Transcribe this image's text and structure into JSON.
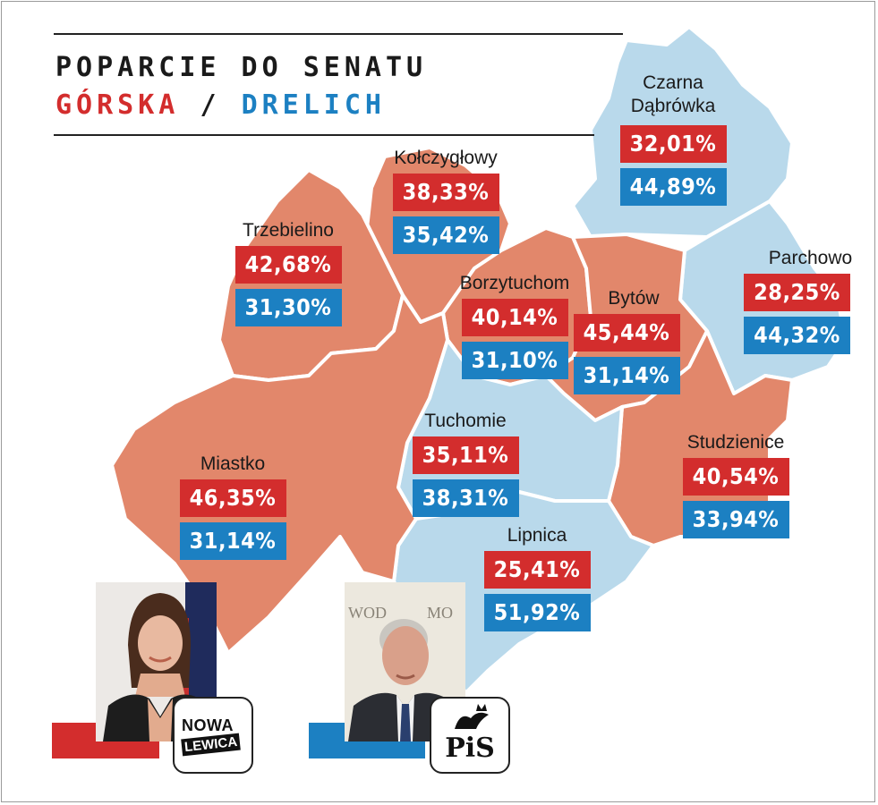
{
  "header": {
    "title": "POPARCIE DO SENATU",
    "candidate_a": "GÓRSKA",
    "separator": "/",
    "candidate_b": "DRELICH"
  },
  "colors": {
    "candidate_a": "#d32d2d",
    "candidate_b": "#1c80c2",
    "region_a": "#e2876b",
    "region_b": "#b9d9eb"
  },
  "municipalities": [
    {
      "name": "Kołczygłowy",
      "a": "38,33%",
      "b": "35,42%"
    },
    {
      "name": "Czarna Dąbrówka",
      "a": "32,01%",
      "b": "44,89%"
    },
    {
      "name": "Trzebielino",
      "a": "42,68%",
      "b": "31,30%"
    },
    {
      "name": "Borzytuchom",
      "a": "40,14%",
      "b": "31,10%"
    },
    {
      "name": "Bytów",
      "a": "45,44%",
      "b": "31,14%"
    },
    {
      "name": "Parchowo",
      "a": "28,25%",
      "b": "44,32%"
    },
    {
      "name": "Tuchomie",
      "a": "35,11%",
      "b": "38,31%"
    },
    {
      "name": "Studzienice",
      "a": "40,54%",
      "b": "33,94%"
    },
    {
      "name": "Miastko",
      "a": "46,35%",
      "b": "31,14%"
    },
    {
      "name": "Lipnica",
      "a": "25,41%",
      "b": "51,92%"
    }
  ],
  "logos": {
    "party_a_line1": "NOWA",
    "party_a_line2": "LEWICA",
    "party_b": "PiS"
  },
  "photo_b_backdrop": "WOD          MO"
}
